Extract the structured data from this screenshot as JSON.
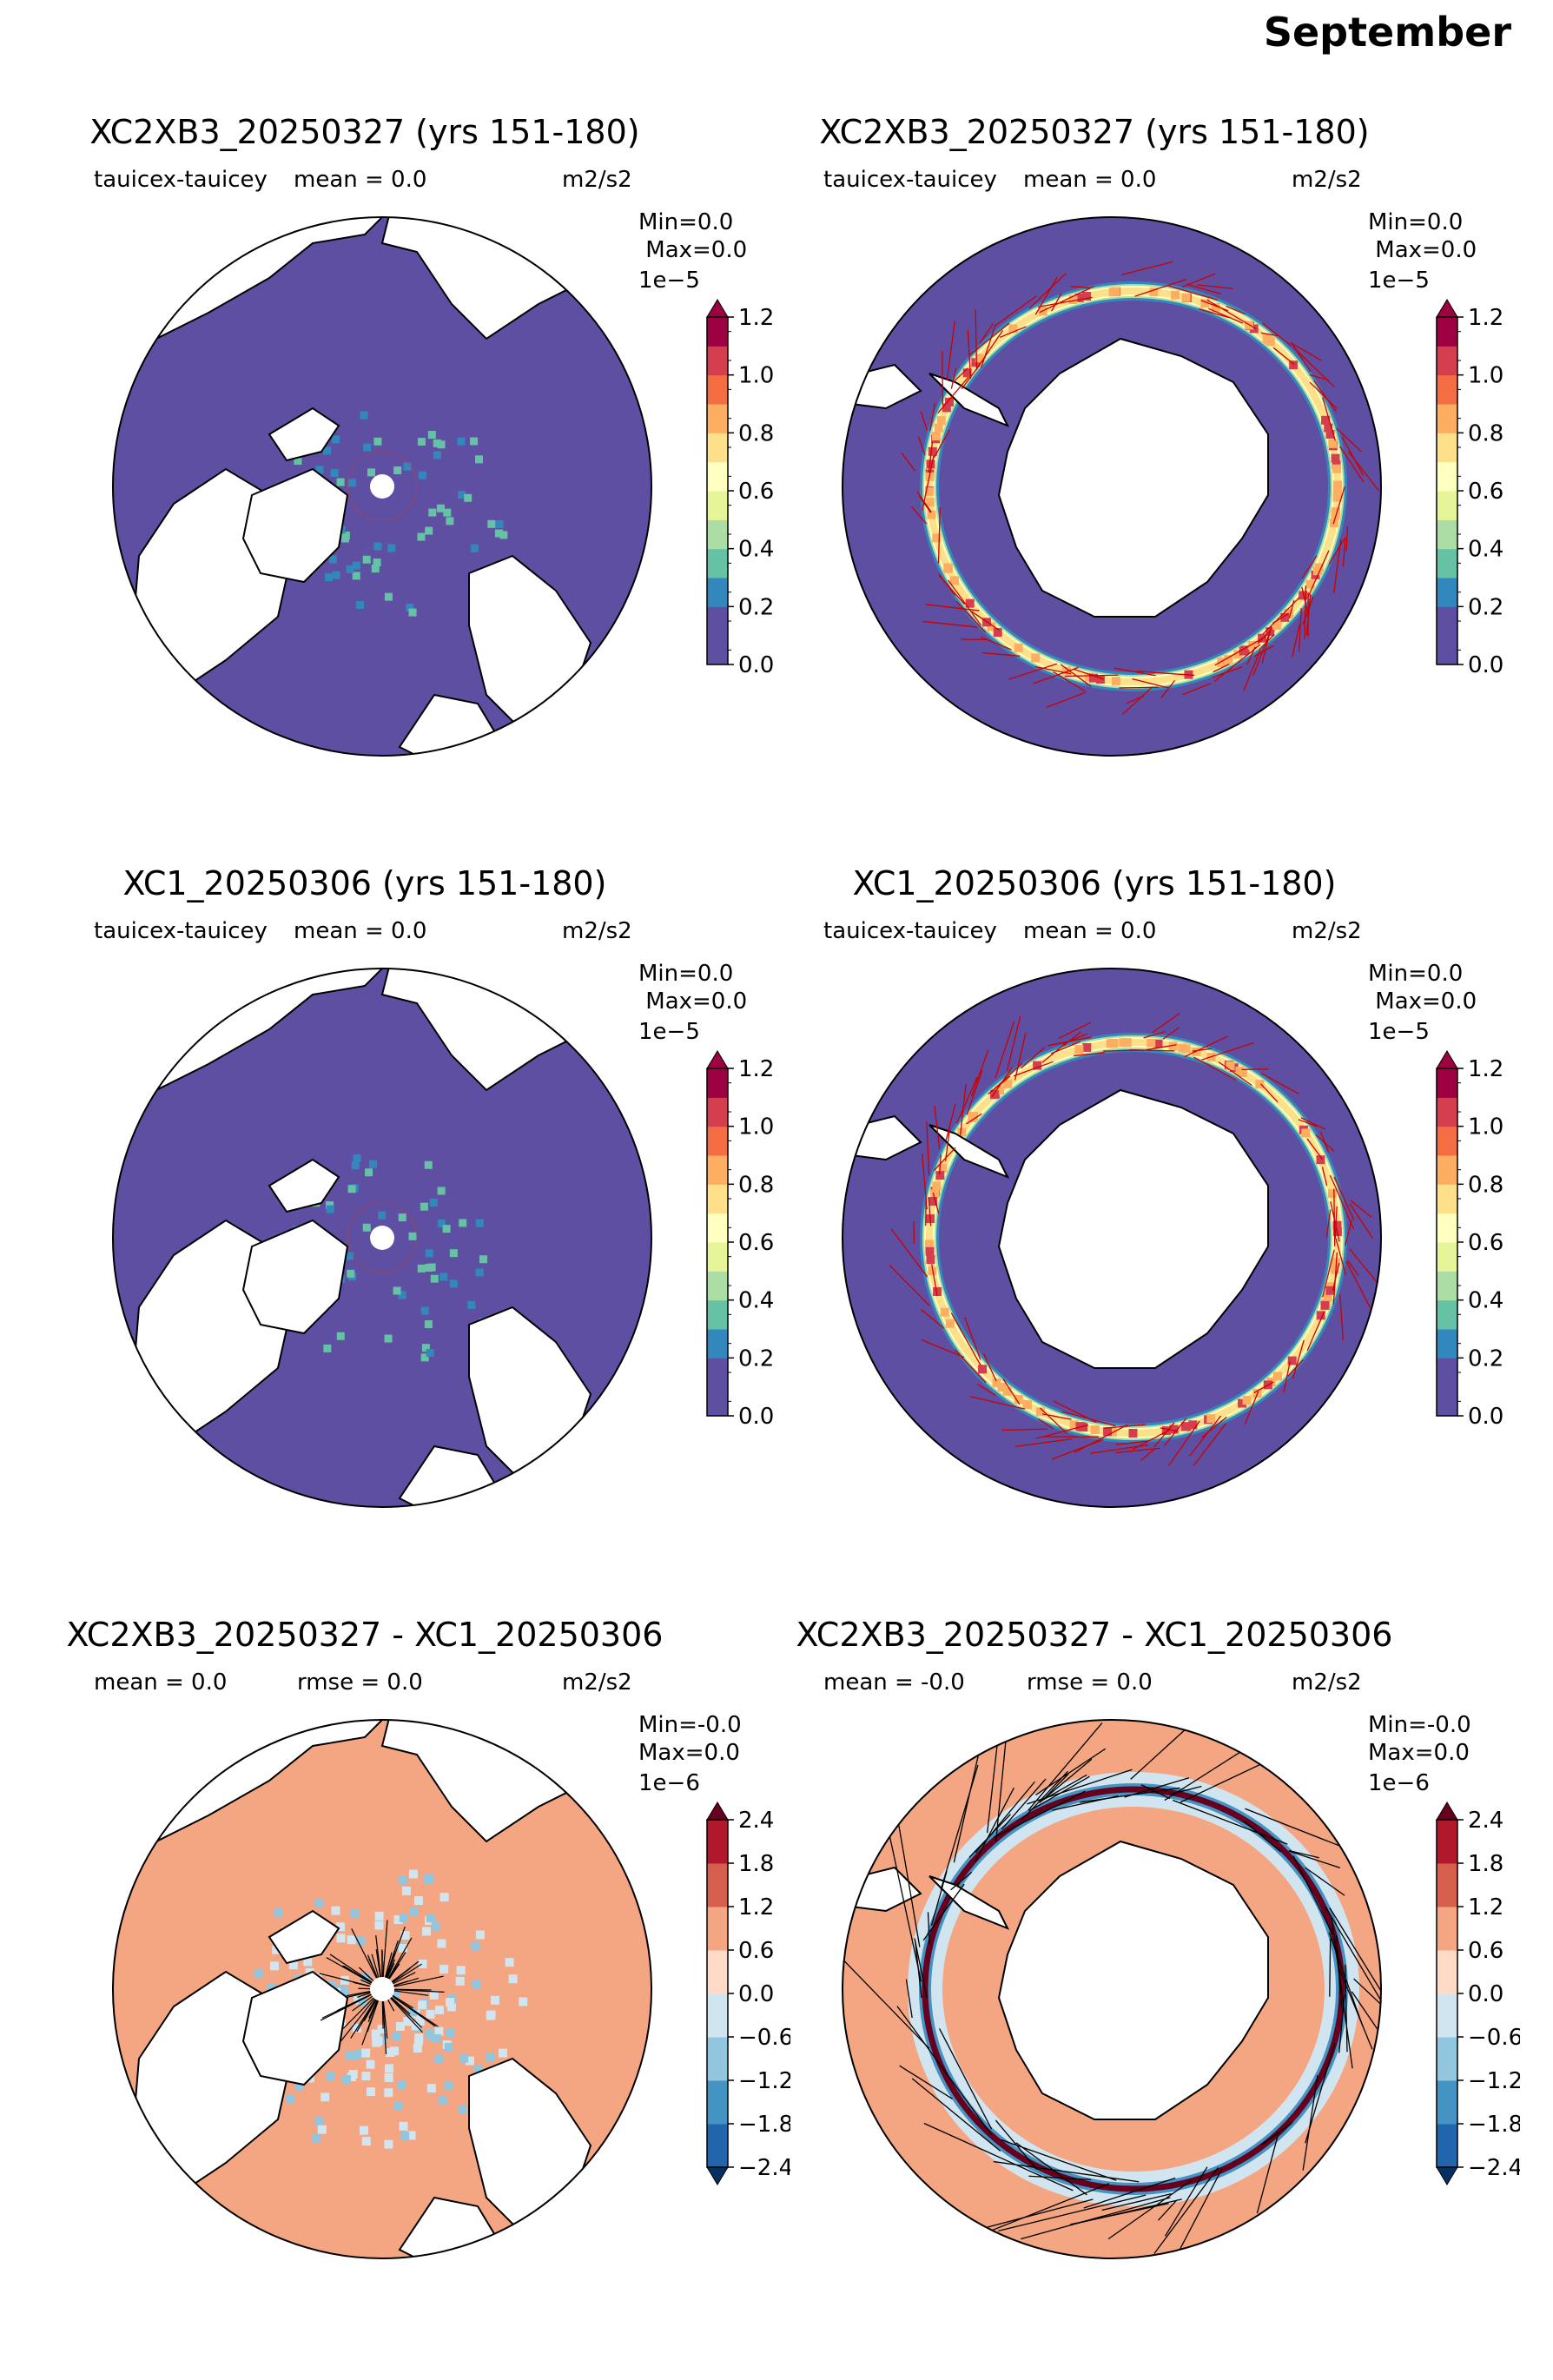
{
  "figure_title": "September",
  "colors": {
    "seq": [
      "#5e4fa2",
      "#3288bd",
      "#66c2a5",
      "#abdda4",
      "#e6f598",
      "#ffffbf",
      "#fee08b",
      "#fdae61",
      "#f46d43",
      "#d53e4f",
      "#9e0142"
    ],
    "div": [
      "#053061",
      "#2166ac",
      "#4393c3",
      "#92c5de",
      "#d1e5f0",
      "#fddbc7",
      "#f4a582",
      "#d6604d",
      "#b2182b",
      "#67001f"
    ],
    "land": "#ffffff",
    "coast": "#000000",
    "vector_panels_1_4": "#cc0000",
    "vector_panels_5_6": "#000000"
  },
  "chart_data": [
    {
      "type": "heatmap",
      "projection": "north-polar-stereographic",
      "title": "XC2XB3_20250327 (yrs 151-180)",
      "variable": "tauicex-tauicey",
      "stat_text": "mean = 0.0",
      "units": "m2/s2",
      "minmax": "Min=0.0\n Max=0.0",
      "colorbar": {
        "exponent": "1e−5",
        "ticks": [
          "0.0",
          "0.2",
          "0.4",
          "0.6",
          "0.8",
          "1.0",
          "1.2"
        ],
        "range": [
          0.0,
          1.2
        ],
        "extend": "max"
      }
    },
    {
      "type": "heatmap",
      "projection": "south-polar-stereographic",
      "title": "XC2XB3_20250327 (yrs 151-180)",
      "variable": "tauicex-tauicey",
      "stat_text": "mean = 0.0",
      "units": "m2/s2",
      "minmax": "Min=0.0\n Max=0.0",
      "colorbar": {
        "exponent": "1e−5",
        "ticks": [
          "0.0",
          "0.2",
          "0.4",
          "0.6",
          "0.8",
          "1.0",
          "1.2"
        ],
        "range": [
          0.0,
          1.2
        ],
        "extend": "max"
      }
    },
    {
      "type": "heatmap",
      "projection": "north-polar-stereographic",
      "title": "XC1_20250306 (yrs 151-180)",
      "variable": "tauicex-tauicey",
      "stat_text": "mean = 0.0",
      "units": "m2/s2",
      "minmax": "Min=0.0\n Max=0.0",
      "colorbar": {
        "exponent": "1e−5",
        "ticks": [
          "0.0",
          "0.2",
          "0.4",
          "0.6",
          "0.8",
          "1.0",
          "1.2"
        ],
        "range": [
          0.0,
          1.2
        ],
        "extend": "max"
      }
    },
    {
      "type": "heatmap",
      "projection": "south-polar-stereographic",
      "title": "XC1_20250306 (yrs 151-180)",
      "variable": "tauicex-tauicey",
      "stat_text": "mean = 0.0",
      "units": "m2/s2",
      "minmax": "Min=0.0\n Max=0.0",
      "colorbar": {
        "exponent": "1e−5",
        "ticks": [
          "0.0",
          "0.2",
          "0.4",
          "0.6",
          "0.8",
          "1.0",
          "1.2"
        ],
        "range": [
          0.0,
          1.2
        ],
        "extend": "max"
      }
    },
    {
      "type": "heatmap",
      "projection": "north-polar-stereographic",
      "title": "XC2XB3_20250327 - XC1_20250306",
      "stat_text": "mean = 0.0",
      "rmse_text": "rmse = 0.0",
      "units": "m2/s2",
      "minmax": "Min=-0.0\nMax=0.0",
      "colorbar": {
        "exponent": "1e−6",
        "ticks": [
          "−2.4",
          "−1.8",
          "−1.2",
          "−0.6",
          "0.0",
          "0.6",
          "1.2",
          "1.8",
          "2.4"
        ],
        "range": [
          -2.4,
          2.4
        ],
        "extend": "both"
      }
    },
    {
      "type": "heatmap",
      "projection": "south-polar-stereographic",
      "title": "XC2XB3_20250327 - XC1_20250306",
      "stat_text": "mean = -0.0",
      "rmse_text": "rmse = 0.0",
      "units": "m2/s2",
      "minmax": "Min=-0.0\nMax=0.0",
      "colorbar": {
        "exponent": "1e−6",
        "ticks": [
          "−2.4",
          "−1.8",
          "−1.2",
          "−0.6",
          "0.0",
          "0.6",
          "1.2",
          "1.8",
          "2.4"
        ],
        "range": [
          -2.4,
          2.4
        ],
        "extend": "both"
      }
    }
  ]
}
